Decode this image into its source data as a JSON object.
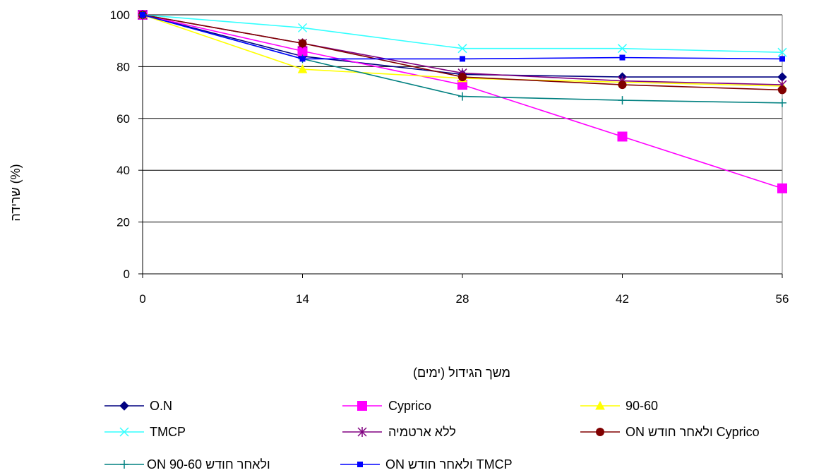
{
  "chart_data": {
    "type": "line",
    "title": "",
    "xlabel": "משך הגידול (ימים)",
    "ylabel": "שרידה (%)",
    "x": [
      0,
      14,
      28,
      42,
      56
    ],
    "x_ticks": [
      "0",
      "14",
      "28",
      "42",
      "56"
    ],
    "y_ticks": [
      "0",
      "20",
      "40",
      "60",
      "80",
      "100"
    ],
    "xlim": [
      0,
      56
    ],
    "ylim": [
      0,
      100
    ],
    "grid": "horizontal",
    "legend_position": "bottom",
    "series": [
      {
        "name": "O.N",
        "values": [
          100,
          84,
          77,
          76,
          76
        ],
        "color": "#000080",
        "marker": "diamond"
      },
      {
        "name": "Cyprico",
        "values": [
          100,
          86,
          73,
          53,
          33
        ],
        "color": "#ff00ff",
        "marker": "square"
      },
      {
        "name": "90-60",
        "values": [
          100,
          79,
          75.5,
          74,
          72.5
        ],
        "color": "#ffff00",
        "marker": "triangle"
      },
      {
        "name": "TMCP",
        "values": [
          100,
          95,
          87,
          87,
          85.5
        ],
        "color": "#33ffff",
        "marker": "x"
      },
      {
        "name": "ללא ארטמיה",
        "values": [
          100,
          89,
          77.5,
          74.5,
          73
        ],
        "color": "#800080",
        "marker": "star"
      },
      {
        "name": "ON ולאחר חודש Cyprico",
        "values": [
          100,
          89,
          76,
          73,
          71
        ],
        "color": "#800000",
        "marker": "circle"
      },
      {
        "name": "ON ולאחר חודש 90-60",
        "values": [
          100,
          83,
          68.5,
          67,
          66
        ],
        "color": "#008080",
        "marker": "plus"
      },
      {
        "name": "ON ולאחר חודש TMCP",
        "values": [
          100,
          83,
          83,
          83.5,
          83
        ],
        "color": "#0000ff",
        "marker": "smallsquare"
      }
    ]
  }
}
